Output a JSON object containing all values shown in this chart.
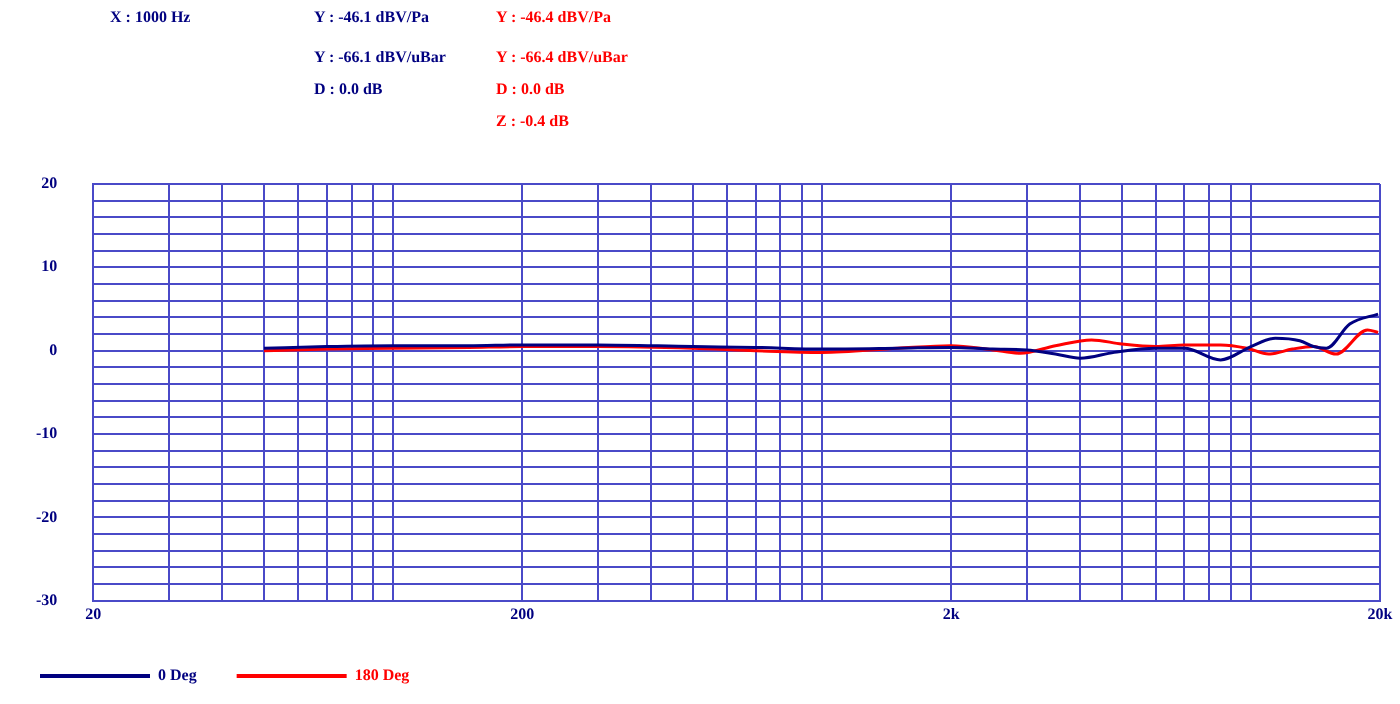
{
  "chart_data": {
    "type": "line",
    "annotations": [
      "X : 1000 Hz",
      "Y : -46.1 dBV/Pa",
      "Y : -66.1 dBV/uBar",
      "D : 0.0 dB",
      "Y : -46.4 dBV/Pa",
      "Y : -66.4 dBV/uBar",
      "D : 0.0 dB",
      "Z : -0.4 dB"
    ],
    "series": [
      {
        "name": "0 Deg",
        "color": "#000080",
        "x": [
          50,
          70,
          100,
          150,
          200,
          300,
          500,
          700,
          1000,
          1500,
          2000,
          2500,
          3000,
          3500,
          4000,
          4800,
          6000,
          7000,
          8500,
          10000,
          11400,
          13000,
          14000,
          15000,
          17000,
          19800
        ],
        "values": [
          0.3,
          0.5,
          0.6,
          0.6,
          0.7,
          0.7,
          0.5,
          0.4,
          0.2,
          0.3,
          0.4,
          0.2,
          0.1,
          -0.4,
          -0.9,
          -0.2,
          0.3,
          0.3,
          -1.1,
          0.5,
          1.5,
          1.2,
          0.5,
          0.3,
          3.2,
          4.4
        ]
      },
      {
        "name": "180 Deg",
        "color": "#ff0000",
        "x": [
          50,
          70,
          100,
          150,
          200,
          300,
          500,
          700,
          1000,
          1500,
          2000,
          2500,
          2900,
          3500,
          4250,
          5000,
          6000,
          7000,
          8500,
          9800,
          11000,
          12500,
          14000,
          15800,
          18700,
          19800
        ],
        "values": [
          0,
          0.2,
          0.3,
          0.4,
          0.5,
          0.5,
          0.3,
          0,
          -0.2,
          0.3,
          0.6,
          0.1,
          -0.3,
          0.6,
          1.3,
          0.8,
          0.5,
          0.7,
          0.7,
          0.3,
          -0.4,
          0.2,
          0.5,
          -0.4,
          2.5,
          2.2
        ]
      }
    ],
    "xlim": [
      20,
      20000
    ],
    "xticks": [
      20,
      {
        "value": 30,
        "label": null
      },
      {
        "value": 40,
        "label": null
      },
      {
        "value": 50,
        "label": null
      },
      {
        "value": 60,
        "label": null
      },
      {
        "value": 70,
        "label": null
      },
      {
        "value": 80,
        "label": null
      },
      {
        "value": 90,
        "label": null
      },
      {
        "value": 100,
        "label": null
      },
      200,
      {
        "value": 300,
        "label": null
      },
      {
        "value": 400,
        "label": null
      },
      {
        "value": 500,
        "label": null
      },
      {
        "value": 600,
        "label": null
      },
      {
        "value": 700,
        "label": null
      },
      {
        "value": 800,
        "label": null
      },
      {
        "value": 900,
        "label": null
      },
      {
        "value": 1000,
        "label": null
      },
      {
        "value": 2000,
        "label": "2k"
      },
      {
        "value": 3000,
        "label": null
      },
      {
        "value": 4000,
        "label": null
      },
      {
        "value": 5000,
        "label": null
      },
      {
        "value": 6000,
        "label": null
      },
      {
        "value": 7000,
        "label": null
      },
      {
        "value": 8000,
        "label": null
      },
      {
        "value": 9000,
        "label": null
      },
      {
        "value": 10000,
        "label": null
      },
      {
        "value": 20000,
        "label": "20k"
      }
    ],
    "ylim": [
      -30,
      20
    ],
    "yticks": [
      -30,
      {
        "value": -28,
        "label": null
      },
      {
        "value": -26,
        "label": null
      },
      {
        "value": -24,
        "label": null
      },
      {
        "value": -22,
        "label": null
      },
      -20,
      {
        "value": -18,
        "label": null
      },
      {
        "value": -16,
        "label": null
      },
      {
        "value": -14,
        "label": null
      },
      {
        "value": -12,
        "label": null
      },
      -10,
      {
        "value": -8,
        "label": null
      },
      {
        "value": -6,
        "label": null
      },
      {
        "value": -4,
        "label": null
      },
      {
        "value": -2,
        "label": null
      },
      0,
      {
        "value": 2,
        "label": null
      },
      {
        "value": 4,
        "label": null
      },
      {
        "value": 6,
        "label": null
      },
      {
        "value": 8,
        "label": null
      },
      10,
      {
        "value": 12,
        "label": null
      },
      {
        "value": 14,
        "label": null
      },
      {
        "value": 16,
        "label": null
      },
      {
        "value": 18,
        "label": null
      },
      20
    ],
    "log": "x",
    "grid": true,
    "legend": "bottom",
    "marker": "none",
    "line_style": "solid"
  }
}
